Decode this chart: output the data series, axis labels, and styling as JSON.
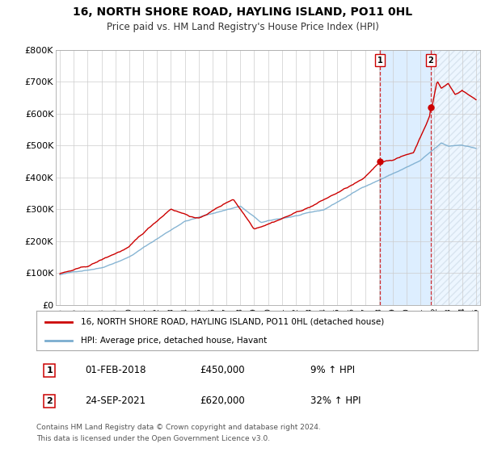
{
  "title": "16, NORTH SHORE ROAD, HAYLING ISLAND, PO11 0HL",
  "subtitle": "Price paid vs. HM Land Registry's House Price Index (HPI)",
  "legend_line1": "16, NORTH SHORE ROAD, HAYLING ISLAND, PO11 0HL (detached house)",
  "legend_line2": "HPI: Average price, detached house, Havant",
  "transaction1_date": "01-FEB-2018",
  "transaction1_price": "£450,000",
  "transaction1_hpi": "9% ↑ HPI",
  "transaction2_date": "24-SEP-2021",
  "transaction2_price": "£620,000",
  "transaction2_hpi": "32% ↑ HPI",
  "footnote1": "Contains HM Land Registry data © Crown copyright and database right 2024.",
  "footnote2": "This data is licensed under the Open Government Licence v3.0.",
  "red_color": "#cc0000",
  "blue_color": "#7aadcf",
  "background_highlight": "#ddeeff",
  "grid_color": "#cccccc",
  "ylim": [
    0,
    800000
  ],
  "ytick_vals": [
    0,
    100000,
    200000,
    300000,
    400000,
    500000,
    600000,
    700000,
    800000
  ],
  "ytick_labels": [
    "£0",
    "£100K",
    "£200K",
    "£300K",
    "£400K",
    "£500K",
    "£600K",
    "£700K",
    "£800K"
  ],
  "start_year": 1995,
  "end_year": 2025,
  "t1_year": 2018.08,
  "t2_year": 2021.73,
  "t1_price": 450000,
  "t2_price": 620000
}
